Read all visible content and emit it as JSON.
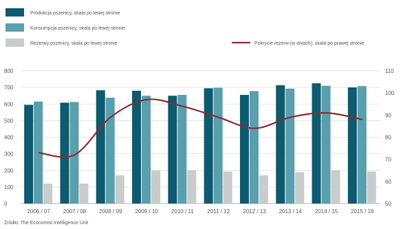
{
  "chart_data": {
    "type": "bar",
    "categories": [
      "2006 / 07",
      "2007 / 08",
      "2008 / 09",
      "2009 / 10",
      "2010 / 11",
      "2011 / 12",
      "2012 / 13",
      "2013 / 14",
      "2014 / 15",
      "2015 / 16"
    ],
    "series": [
      {
        "name": "Produkcja pszenicy, skala po lewej stronie",
        "type": "bar",
        "axis": "left",
        "color": "#0e5a6e",
        "values": [
          595,
          608,
          683,
          680,
          650,
          695,
          655,
          713,
          725,
          700
        ]
      },
      {
        "name": "Konsumpcja pszenicy, skala po lewej stronie",
        "type": "bar",
        "axis": "left",
        "color": "#5a9fad",
        "values": [
          615,
          612,
          638,
          650,
          655,
          698,
          678,
          693,
          710,
          708
        ]
      },
      {
        "name": "Rezerwy pszenicy, skala po lewej stronie",
        "type": "bar",
        "axis": "left",
        "color": "#c8cccc",
        "values": [
          120,
          120,
          170,
          200,
          200,
          193,
          170,
          188,
          200,
          193
        ]
      },
      {
        "name": "Pokrycie rezerw (w dniach), skala po prawej stronie",
        "type": "line",
        "axis": "right",
        "color": "#8b2a33",
        "values": [
          73,
          72,
          89,
          97,
          94,
          89,
          84,
          89,
          91,
          88
        ]
      }
    ],
    "y_left": {
      "ticks": [
        0,
        100,
        200,
        300,
        400,
        500,
        600,
        700,
        800
      ],
      "ylim": [
        0,
        800
      ]
    },
    "y_right": {
      "ticks": [
        50,
        60,
        70,
        80,
        90,
        100,
        110
      ],
      "ylim": [
        50,
        110
      ]
    },
    "grid": true,
    "legend_position": "top",
    "source": "Źródło: The Economist Intelligence Unit"
  }
}
